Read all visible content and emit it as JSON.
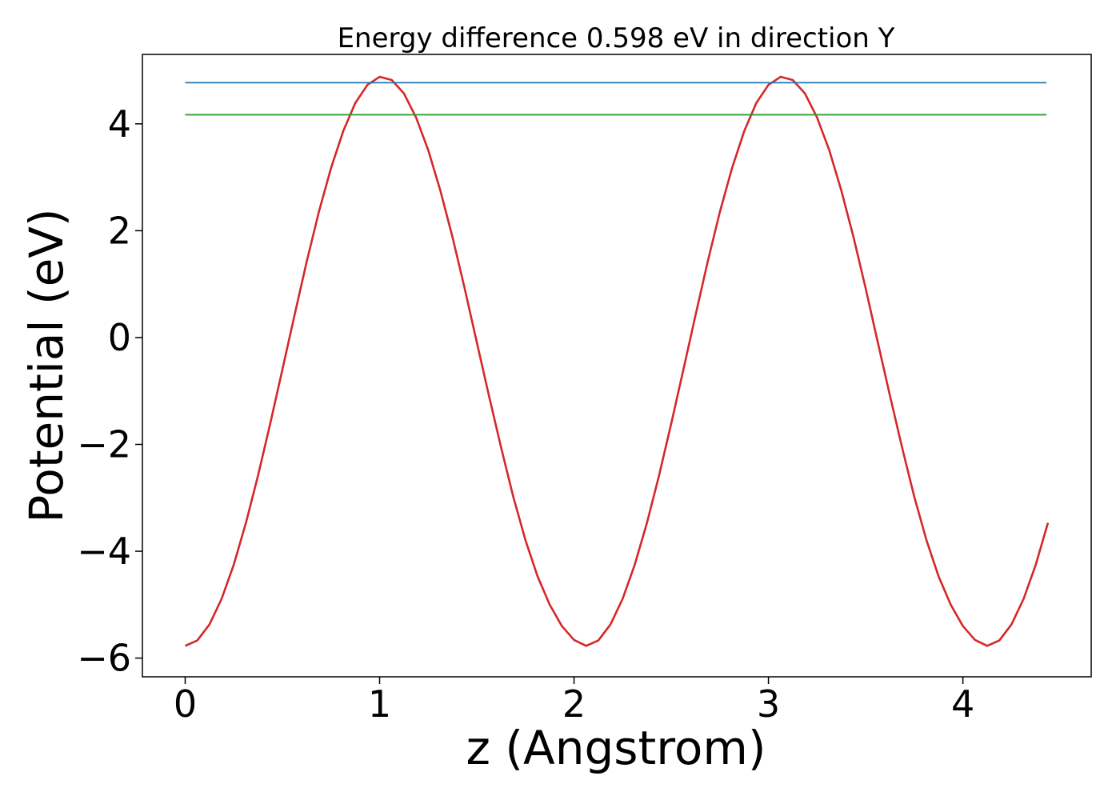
{
  "chart_data": {
    "type": "line",
    "title": "Energy difference 0.598 eV in direction Y",
    "xlabel": "z (Angstrom)",
    "ylabel": "Potential (eV)",
    "xlim": [
      -0.22,
      4.66
    ],
    "ylim": [
      -6.35,
      5.3
    ],
    "xticks": [
      0,
      1,
      2,
      3,
      4
    ],
    "xtick_labels": [
      "0",
      "1",
      "2",
      "3",
      "4"
    ],
    "yticks": [
      -6,
      -4,
      -2,
      0,
      2,
      4
    ],
    "ytick_labels": [
      "−6",
      "−4",
      "−2",
      "0",
      "2",
      "4"
    ],
    "grid": false,
    "series": [
      {
        "color": "#d62728",
        "x": [
          0,
          0.0625,
          0.125,
          0.1875,
          0.25,
          0.3125,
          0.375,
          0.4375,
          0.5,
          0.5625,
          0.625,
          0.6875,
          0.75,
          0.8125,
          0.875,
          0.9375,
          1.0,
          1.0625,
          1.125,
          1.1875,
          1.25,
          1.3125,
          1.375,
          1.4375,
          1.5,
          1.5625,
          1.625,
          1.6875,
          1.75,
          1.8125,
          1.875,
          1.9375,
          2.0,
          2.0625,
          2.125,
          2.1875,
          2.25,
          2.3125,
          2.375,
          2.4375,
          2.5,
          2.5625,
          2.625,
          2.6875,
          2.75,
          2.8125,
          2.875,
          2.9375,
          3.0,
          3.0625,
          3.125,
          3.1875,
          3.25,
          3.3125,
          3.375,
          3.4375,
          3.5,
          3.5625,
          3.625,
          3.6875,
          3.75,
          3.8125,
          3.875,
          3.9375,
          4.0,
          4.0625,
          4.125,
          4.1875,
          4.25,
          4.3125,
          4.375,
          4.4375
        ],
        "y": [
          -5.77,
          -5.67,
          -5.37,
          -4.89,
          -4.25,
          -3.47,
          -2.58,
          -1.61,
          -0.6,
          0.42,
          1.42,
          2.35,
          3.17,
          3.86,
          4.39,
          4.73,
          4.88,
          4.82,
          4.57,
          4.12,
          3.51,
          2.75,
          1.88,
          0.92,
          -0.09,
          -1.09,
          -2.06,
          -2.98,
          -3.79,
          -4.47,
          -5.0,
          -5.4,
          -5.66,
          -5.77,
          -5.67,
          -5.37,
          -4.89,
          -4.25,
          -3.47,
          -2.58,
          -1.61,
          -0.6,
          0.42,
          1.42,
          2.35,
          3.17,
          3.86,
          4.39,
          4.73,
          4.88,
          4.82,
          4.57,
          4.12,
          3.51,
          2.75,
          1.88,
          0.92,
          -0.09,
          -1.09,
          -2.06,
          -2.98,
          -3.79,
          -4.47,
          -5.0,
          -5.4,
          -5.66,
          -5.77,
          -5.67,
          -5.37,
          -4.89,
          -4.25,
          -3.47
        ]
      },
      {
        "color": "#1f77b4",
        "x": [
          0,
          4.43
        ],
        "y": [
          4.77,
          4.77
        ]
      },
      {
        "color": "#2ca02c",
        "x": [
          0,
          4.43
        ],
        "y": [
          4.17,
          4.17
        ]
      }
    ]
  }
}
